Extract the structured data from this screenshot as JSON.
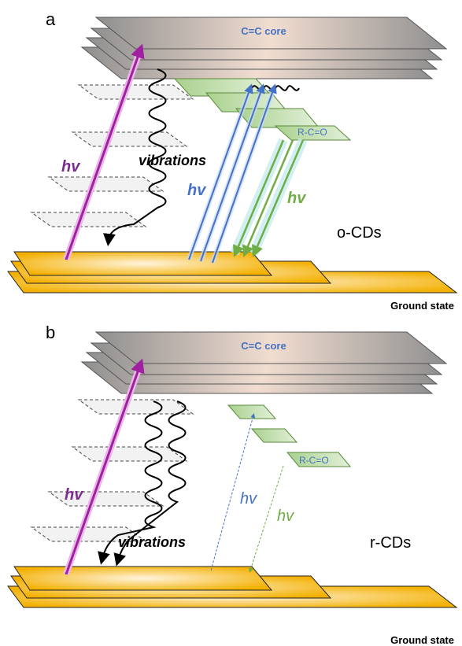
{
  "panels": [
    {
      "label": "a",
      "core": "C=C core",
      "excitation": "hv",
      "vibrations": "vibrations",
      "absorption": "hv",
      "emission": "hv",
      "group": "R-C=O",
      "sample": "o-CDs",
      "ground": "Ground state"
    },
    {
      "label": "b",
      "core": "C=C core",
      "excitation": "hv",
      "vibrations": "vibrations",
      "absorption": "hv",
      "emission": "hv",
      "group": "R-C=O",
      "sample": "r-CDs",
      "ground": "Ground state"
    }
  ]
}
